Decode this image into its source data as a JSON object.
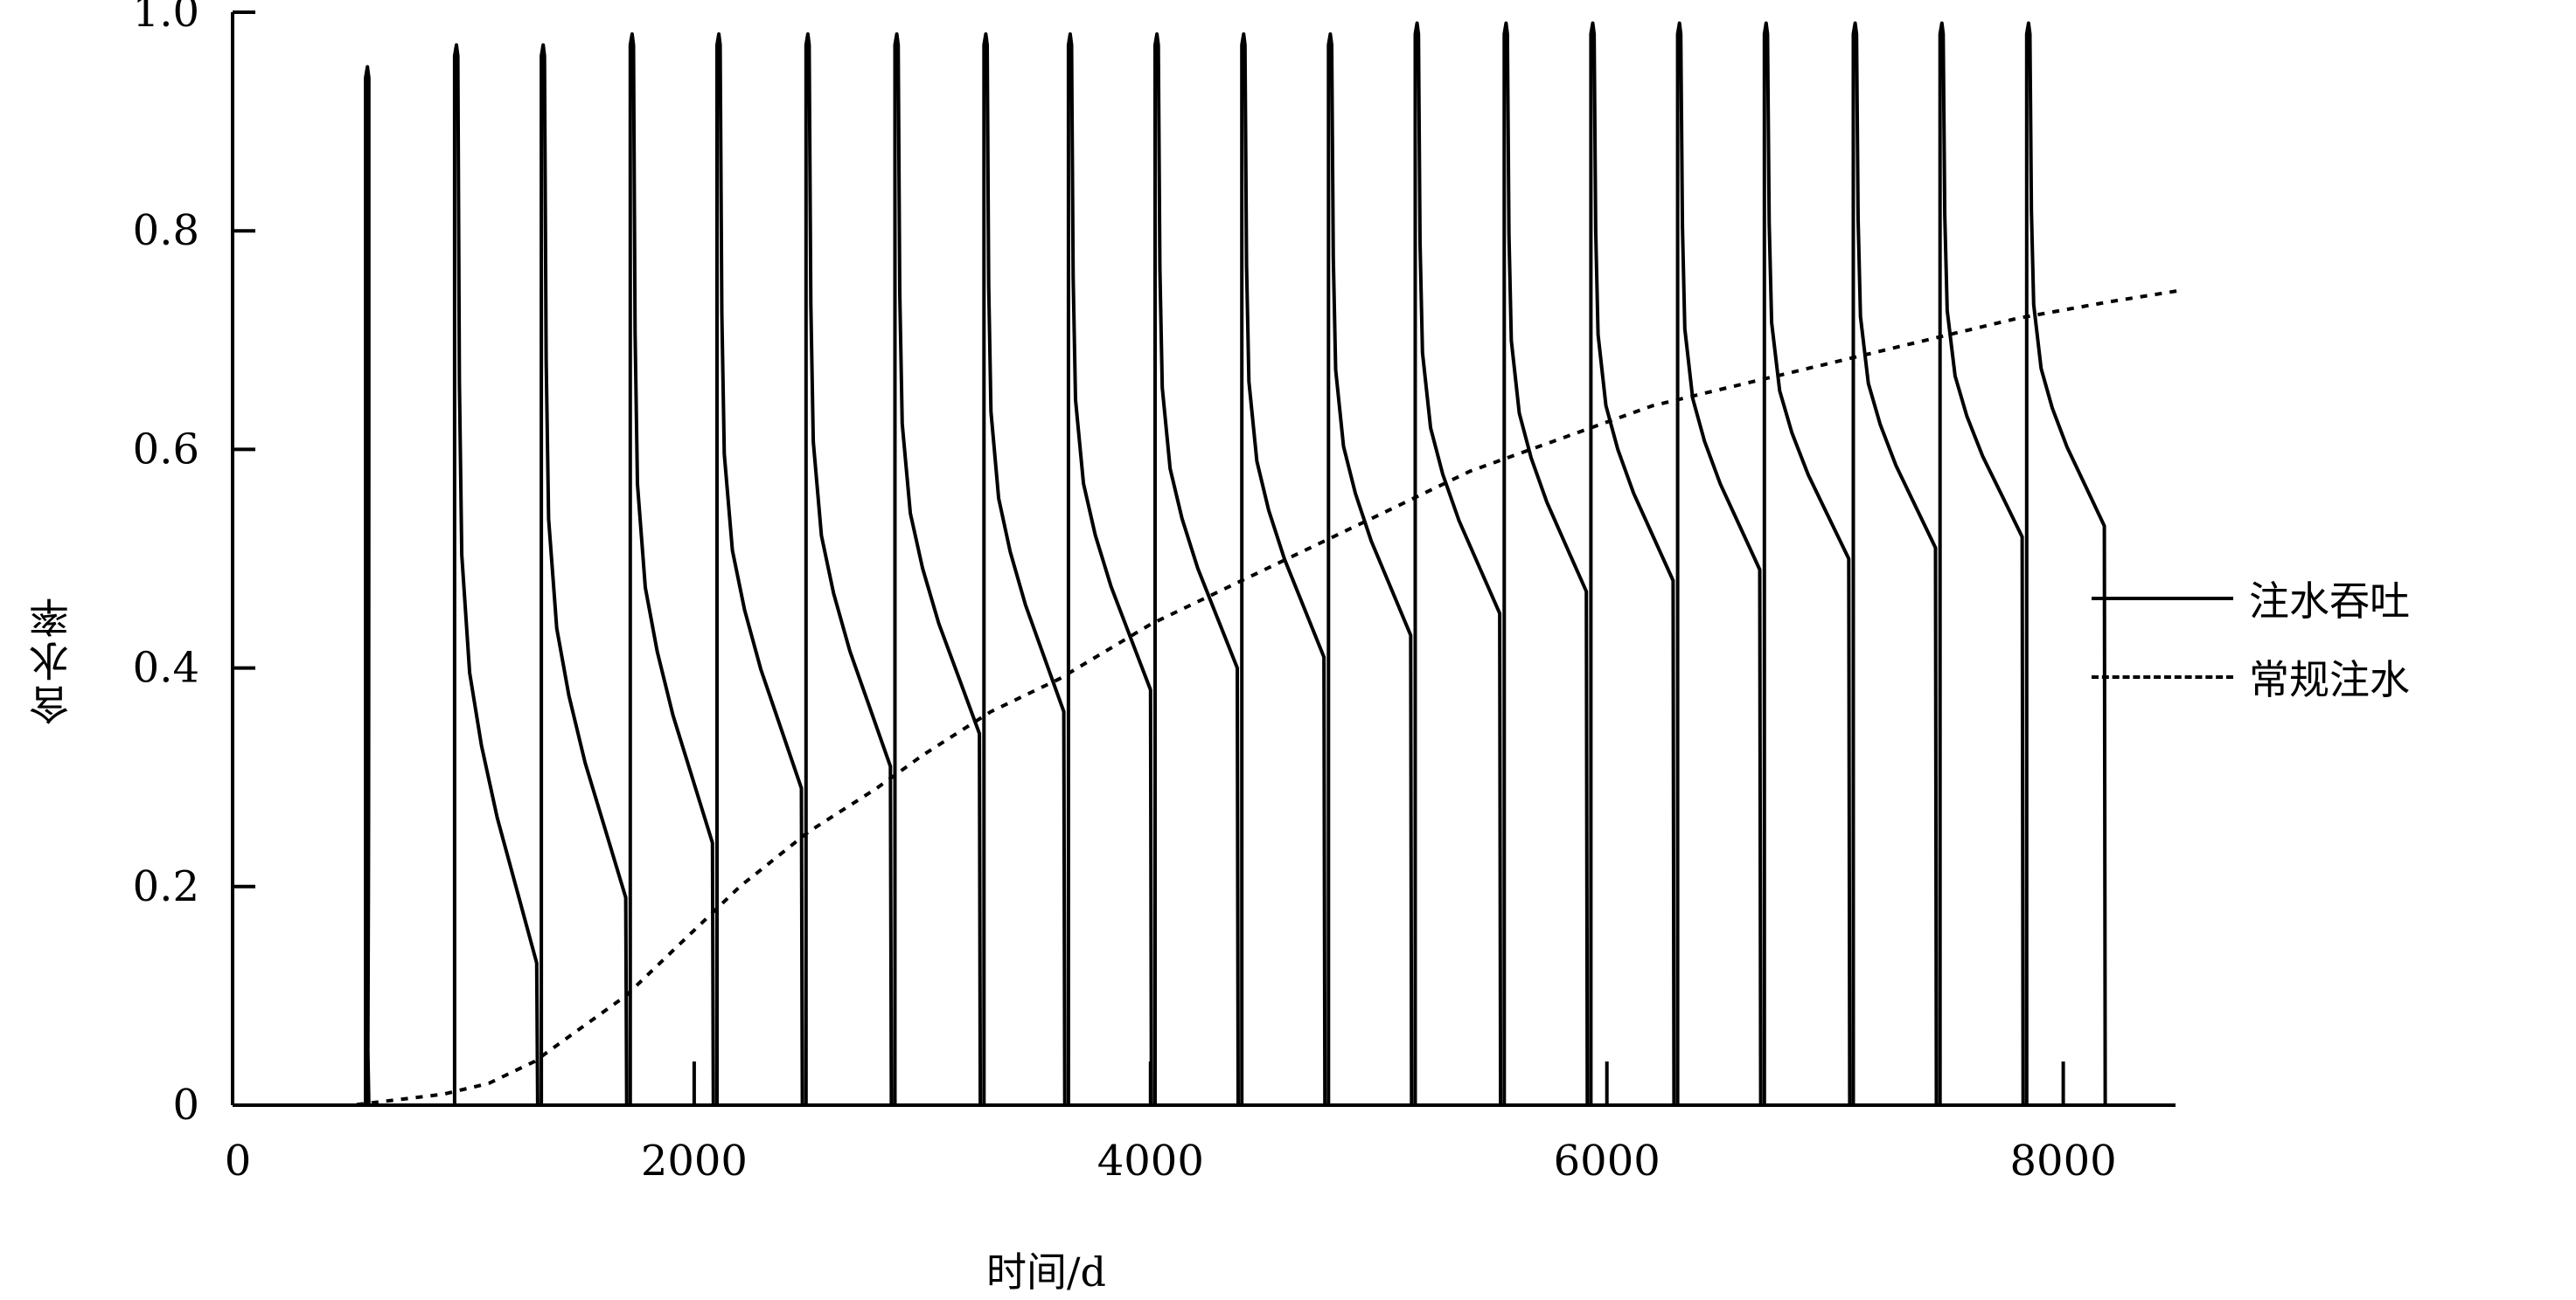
{
  "chart_data": {
    "type": "line",
    "xlabel": "时间/d",
    "ylabel": "含水率",
    "xlim": [
      0,
      8500
    ],
    "ylim": [
      0,
      1.0
    ],
    "xticks": [
      0,
      2000,
      4000,
      6000,
      8000
    ],
    "xtick_labels": [
      "0",
      "2000",
      "4000",
      "6000",
      "8000"
    ],
    "yticks": [
      0,
      0.2,
      0.4,
      0.6,
      0.8,
      1.0
    ],
    "ytick_labels": [
      "0",
      "0.2",
      "0.4",
      "0.6",
      "0.8",
      "1.0"
    ],
    "legend_position": "right",
    "grid": false,
    "series": [
      {
        "name": "注水吞吐",
        "style": "solid",
        "cycles": [
          {
            "start": 560,
            "peak": 0.94,
            "end": 570,
            "min": 0.05
          },
          {
            "start": 950,
            "peak": 0.96,
            "end": 1310,
            "min": 0.13
          },
          {
            "start": 1330,
            "peak": 0.96,
            "end": 1700,
            "min": 0.19
          },
          {
            "start": 1720,
            "peak": 0.97,
            "end": 2080,
            "min": 0.24
          },
          {
            "start": 2100,
            "peak": 0.97,
            "end": 2470,
            "min": 0.29
          },
          {
            "start": 2490,
            "peak": 0.97,
            "end": 2860,
            "min": 0.31
          },
          {
            "start": 2880,
            "peak": 0.97,
            "end": 3250,
            "min": 0.34
          },
          {
            "start": 3270,
            "peak": 0.97,
            "end": 3620,
            "min": 0.36
          },
          {
            "start": 3640,
            "peak": 0.97,
            "end": 4000,
            "min": 0.38
          },
          {
            "start": 4020,
            "peak": 0.97,
            "end": 4380,
            "min": 0.4
          },
          {
            "start": 4400,
            "peak": 0.97,
            "end": 4760,
            "min": 0.41
          },
          {
            "start": 4780,
            "peak": 0.97,
            "end": 5140,
            "min": 0.43
          },
          {
            "start": 5160,
            "peak": 0.98,
            "end": 5530,
            "min": 0.45
          },
          {
            "start": 5550,
            "peak": 0.98,
            "end": 5910,
            "min": 0.47
          },
          {
            "start": 5930,
            "peak": 0.98,
            "end": 6290,
            "min": 0.48
          },
          {
            "start": 6310,
            "peak": 0.98,
            "end": 6670,
            "min": 0.49
          },
          {
            "start": 6690,
            "peak": 0.98,
            "end": 7060,
            "min": 0.5
          },
          {
            "start": 7080,
            "peak": 0.98,
            "end": 7440,
            "min": 0.51
          },
          {
            "start": 7460,
            "peak": 0.98,
            "end": 7820,
            "min": 0.52
          },
          {
            "start": 7840,
            "peak": 0.98,
            "end": 8180,
            "min": 0.53
          }
        ]
      },
      {
        "name": "常规注水",
        "style": "dotted",
        "x": [
          0,
          500,
          900,
          1100,
          1300,
          1500,
          1700,
          2000,
          2200,
          2500,
          2800,
          3000,
          3300,
          3600,
          4000,
          4300,
          4600,
          5000,
          5400,
          5800,
          6200,
          6600,
          7000,
          7400,
          7800,
          8200,
          8500
        ],
        "y": [
          0,
          0,
          0.01,
          0.02,
          0.04,
          0.07,
          0.1,
          0.16,
          0.2,
          0.25,
          0.29,
          0.32,
          0.36,
          0.39,
          0.44,
          0.47,
          0.5,
          0.54,
          0.58,
          0.61,
          0.64,
          0.66,
          0.68,
          0.7,
          0.72,
          0.735,
          0.745
        ]
      }
    ]
  }
}
